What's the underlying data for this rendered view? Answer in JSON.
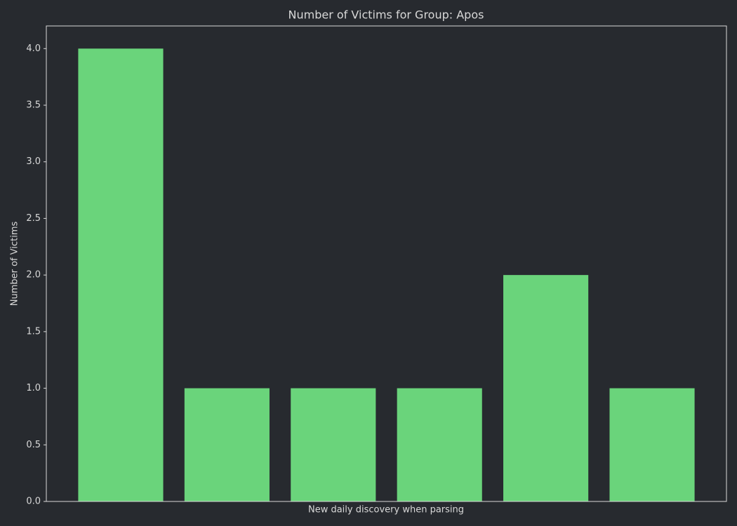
{
  "chart_data": {
    "type": "bar",
    "title": "Number of Victims for Group: Apos",
    "x_label": "New daily discovery when parsing",
    "y_label": "Number of Victims",
    "categories": [
      null,
      null,
      null,
      null,
      null,
      null
    ],
    "values": [
      4,
      1,
      1,
      1,
      2,
      1
    ],
    "color": "#6ad47b",
    "ylim": [
      0,
      4.2
    ],
    "yticks": [
      {
        "value": 0,
        "label": "0.0"
      },
      {
        "value": 0.5,
        "label": "0.5"
      },
      {
        "value": 1,
        "label": "1.0"
      },
      {
        "value": 1.5,
        "label": "1.5"
      },
      {
        "value": 2,
        "label": "2.0"
      },
      {
        "value": 2.5,
        "label": "2.5"
      },
      {
        "value": 3,
        "label": "3.0"
      },
      {
        "value": 3.5,
        "label": "3.5"
      },
      {
        "value": 4,
        "label": "4.0"
      }
    ],
    "grid": false
  }
}
